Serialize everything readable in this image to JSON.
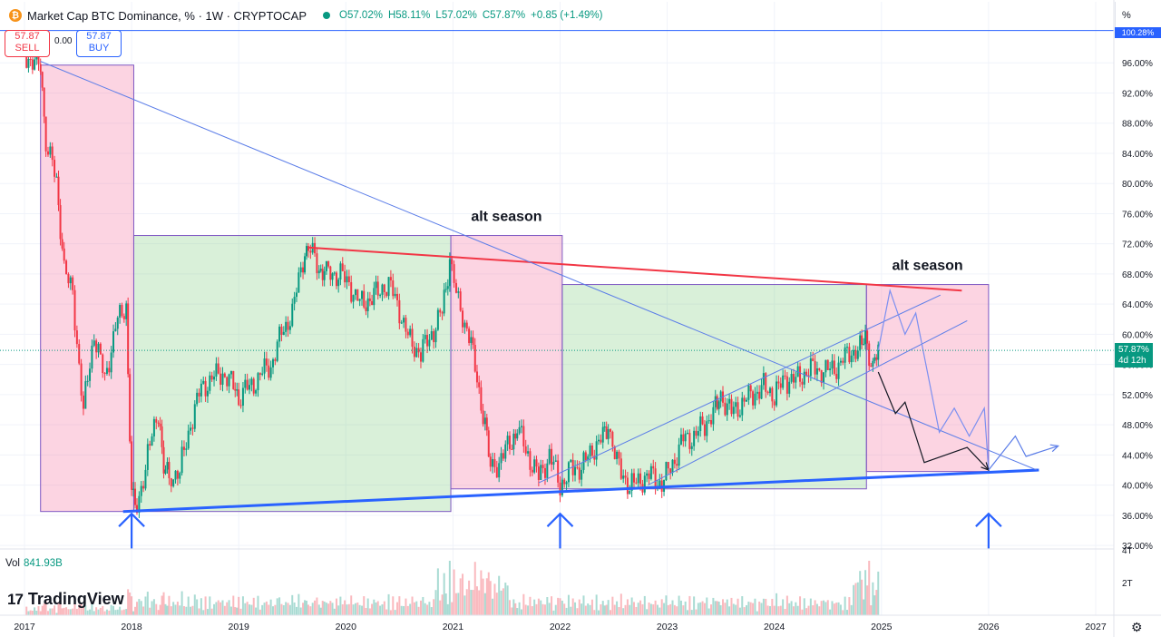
{
  "header": {
    "title": "Market Cap BTC Dominance, % · 1W · CRYPTOCAP",
    "coin_symbol": "₿",
    "open": "O57.02%",
    "high": "H58.11%",
    "low": "L57.02%",
    "close": "C57.87%",
    "change": "+0.85 (+1.49%)"
  },
  "trade": {
    "sell_price": "57.87",
    "sell_label": "SELL",
    "buy_price": "57.87",
    "buy_label": "BUY",
    "spread": "0.00"
  },
  "price_axis": {
    "unit": "%",
    "top_badge": "100.28%",
    "current_value": "57.87%",
    "current_countdown": "4d 12h"
  },
  "volume": {
    "label": "Vol",
    "value": "841.93B",
    "ticks": [
      "4T",
      "2T"
    ]
  },
  "branding": {
    "name": "TradingView",
    "mark": "17"
  },
  "colors": {
    "up": "#089981",
    "down": "#f23645",
    "alt_zone": "#f8bbd0",
    "btc_zone": "#c8e6c9",
    "support": "#2962ff",
    "resistance": "#f23645",
    "accent": "#2962ff"
  },
  "chart_data": {
    "type": "candlestick",
    "title": "Market Cap BTC Dominance, % · 1W · CRYPTOCAP",
    "x_axis": {
      "ticks": [
        "2017",
        "2018",
        "2019",
        "2020",
        "2021",
        "2022",
        "2023",
        "2024",
        "2025",
        "2026",
        "2027"
      ],
      "range": [
        2017.0,
        2027.0
      ]
    },
    "y_axis": {
      "ticks": [
        "96.00%",
        "92.00%",
        "88.00%",
        "84.00%",
        "80.00%",
        "76.00%",
        "72.00%",
        "68.00%",
        "64.00%",
        "60.00%",
        "56.00%",
        "52.00%",
        "48.00%",
        "44.00%",
        "40.00%",
        "36.00%",
        "32.00%"
      ],
      "range": [
        30.4,
        100.8
      ],
      "grid": true
    },
    "series": [
      {
        "values": [
          [
            2017.0,
            97
          ],
          [
            2017.15,
            95.5
          ],
          [
            2017.2,
            86
          ],
          [
            2017.3,
            80
          ],
          [
            2017.37,
            69
          ],
          [
            2017.45,
            65
          ],
          [
            2017.55,
            50
          ],
          [
            2017.65,
            60
          ],
          [
            2017.75,
            54
          ],
          [
            2017.85,
            61
          ],
          [
            2017.95,
            64
          ],
          [
            2018.0,
            38
          ],
          [
            2018.05,
            37
          ],
          [
            2018.15,
            44
          ],
          [
            2018.25,
            50
          ],
          [
            2018.3,
            42
          ],
          [
            2018.35,
            41
          ],
          [
            2018.45,
            42
          ],
          [
            2018.55,
            48
          ],
          [
            2018.65,
            53
          ],
          [
            2018.75,
            54
          ],
          [
            2018.85,
            55
          ],
          [
            2018.95,
            53
          ],
          [
            2019.0,
            52
          ],
          [
            2019.1,
            53
          ],
          [
            2019.2,
            54.5
          ],
          [
            2019.3,
            56
          ],
          [
            2019.4,
            60
          ],
          [
            2019.5,
            63
          ],
          [
            2019.6,
            70
          ],
          [
            2019.65,
            71.5
          ],
          [
            2019.75,
            69
          ],
          [
            2019.8,
            68
          ],
          [
            2019.95,
            68
          ],
          [
            2020.05,
            66
          ],
          [
            2020.15,
            64
          ],
          [
            2020.3,
            65.5
          ],
          [
            2020.4,
            67
          ],
          [
            2020.5,
            63
          ],
          [
            2020.6,
            59
          ],
          [
            2020.7,
            57.5
          ],
          [
            2020.8,
            60
          ],
          [
            2020.9,
            63
          ],
          [
            2020.97,
            70
          ],
          [
            2021.05,
            64
          ],
          [
            2021.15,
            60
          ],
          [
            2021.3,
            48
          ],
          [
            2021.35,
            42
          ],
          [
            2021.45,
            43.5
          ],
          [
            2021.55,
            46
          ],
          [
            2021.6,
            47.5
          ],
          [
            2021.7,
            44
          ],
          [
            2021.8,
            41
          ],
          [
            2021.9,
            44
          ],
          [
            2022.0,
            40
          ],
          [
            2022.1,
            42
          ],
          [
            2022.2,
            42.5
          ],
          [
            2022.3,
            44.5
          ],
          [
            2022.4,
            46.5
          ],
          [
            2022.45,
            48
          ],
          [
            2022.55,
            42
          ],
          [
            2022.65,
            40
          ],
          [
            2022.75,
            40.5
          ],
          [
            2022.85,
            41.5
          ],
          [
            2022.95,
            40
          ],
          [
            2023.05,
            43
          ],
          [
            2023.15,
            46
          ],
          [
            2023.25,
            46.5
          ],
          [
            2023.35,
            48
          ],
          [
            2023.45,
            50
          ],
          [
            2023.5,
            52
          ],
          [
            2023.6,
            49.5
          ],
          [
            2023.7,
            51
          ],
          [
            2023.8,
            52
          ],
          [
            2023.9,
            53
          ],
          [
            2024.0,
            52
          ],
          [
            2024.1,
            54
          ],
          [
            2024.2,
            54
          ],
          [
            2024.3,
            55
          ],
          [
            2024.4,
            55.5
          ],
          [
            2024.5,
            55
          ],
          [
            2024.6,
            56
          ],
          [
            2024.7,
            57.5
          ],
          [
            2024.8,
            58
          ],
          [
            2024.85,
            60
          ],
          [
            2024.92,
            55
          ],
          [
            2024.97,
            57.9
          ]
        ]
      }
    ],
    "zones": [
      {
        "label": "",
        "kind": "alt",
        "x": [
          2017.15,
          2018.02
        ],
        "y": [
          36.5,
          95.7
        ]
      },
      {
        "label": "",
        "kind": "btc",
        "x": [
          2018.02,
          2020.98
        ],
        "y": [
          36.5,
          73.1
        ]
      },
      {
        "label": "alt season",
        "kind": "alt",
        "x": [
          2020.98,
          2022.02
        ],
        "y": [
          39.5,
          73.1
        ]
      },
      {
        "label": "",
        "kind": "btc",
        "x": [
          2022.02,
          2024.86
        ],
        "y": [
          39.5,
          66.6
        ]
      },
      {
        "label": "alt season",
        "kind": "alt",
        "x": [
          2024.86,
          2026.0
        ],
        "y": [
          41.8,
          66.6
        ]
      }
    ],
    "trendlines": [
      {
        "kind": "support",
        "points": [
          [
            2017.92,
            36.5
          ],
          [
            2026.47,
            42.0
          ]
        ]
      },
      {
        "kind": "resistance",
        "points": [
          [
            2019.65,
            71.5
          ],
          [
            2025.75,
            65.8
          ]
        ]
      },
      {
        "kind": "diagonal",
        "points": [
          [
            2017.15,
            96.2
          ],
          [
            2026.45,
            42.0
          ]
        ]
      },
      {
        "kind": "channel-upper",
        "points": [
          [
            2021.8,
            40.3
          ],
          [
            2025.55,
            65.2
          ]
        ]
      },
      {
        "kind": "channel-lower",
        "points": [
          [
            2022.82,
            40.0
          ],
          [
            2025.8,
            61.8
          ]
        ]
      }
    ],
    "projections": [
      {
        "kind": "bull",
        "points": [
          [
            2024.97,
            57.9
          ],
          [
            2025.08,
            65.8
          ],
          [
            2025.22,
            60.0
          ],
          [
            2025.32,
            62.8
          ],
          [
            2025.54,
            47.0
          ],
          [
            2025.68,
            50.2
          ],
          [
            2025.82,
            46.5
          ],
          [
            2025.96,
            50.2
          ],
          [
            2026.0,
            42.0
          ]
        ]
      },
      {
        "kind": "base",
        "points": [
          [
            2024.97,
            55.0
          ],
          [
            2025.13,
            49.5
          ],
          [
            2025.22,
            51.0
          ],
          [
            2025.4,
            43.0
          ],
          [
            2025.8,
            45.0
          ],
          [
            2026.0,
            42.0
          ]
        ]
      },
      {
        "kind": "bounce",
        "points": [
          [
            2026.0,
            42.0
          ],
          [
            2026.25,
            46.5
          ],
          [
            2026.35,
            43.8
          ],
          [
            2026.65,
            45.2
          ]
        ]
      }
    ],
    "markers": [
      {
        "kind": "arrow-up",
        "x": 2018.0,
        "y_from": 31.6,
        "y_to": 36.2
      },
      {
        "kind": "arrow-up",
        "x": 2022.0,
        "y_from": 31.6,
        "y_to": 36.2
      },
      {
        "kind": "arrow-up",
        "x": 2026.0,
        "y_from": 31.6,
        "y_to": 36.2
      }
    ],
    "legend": "none"
  }
}
